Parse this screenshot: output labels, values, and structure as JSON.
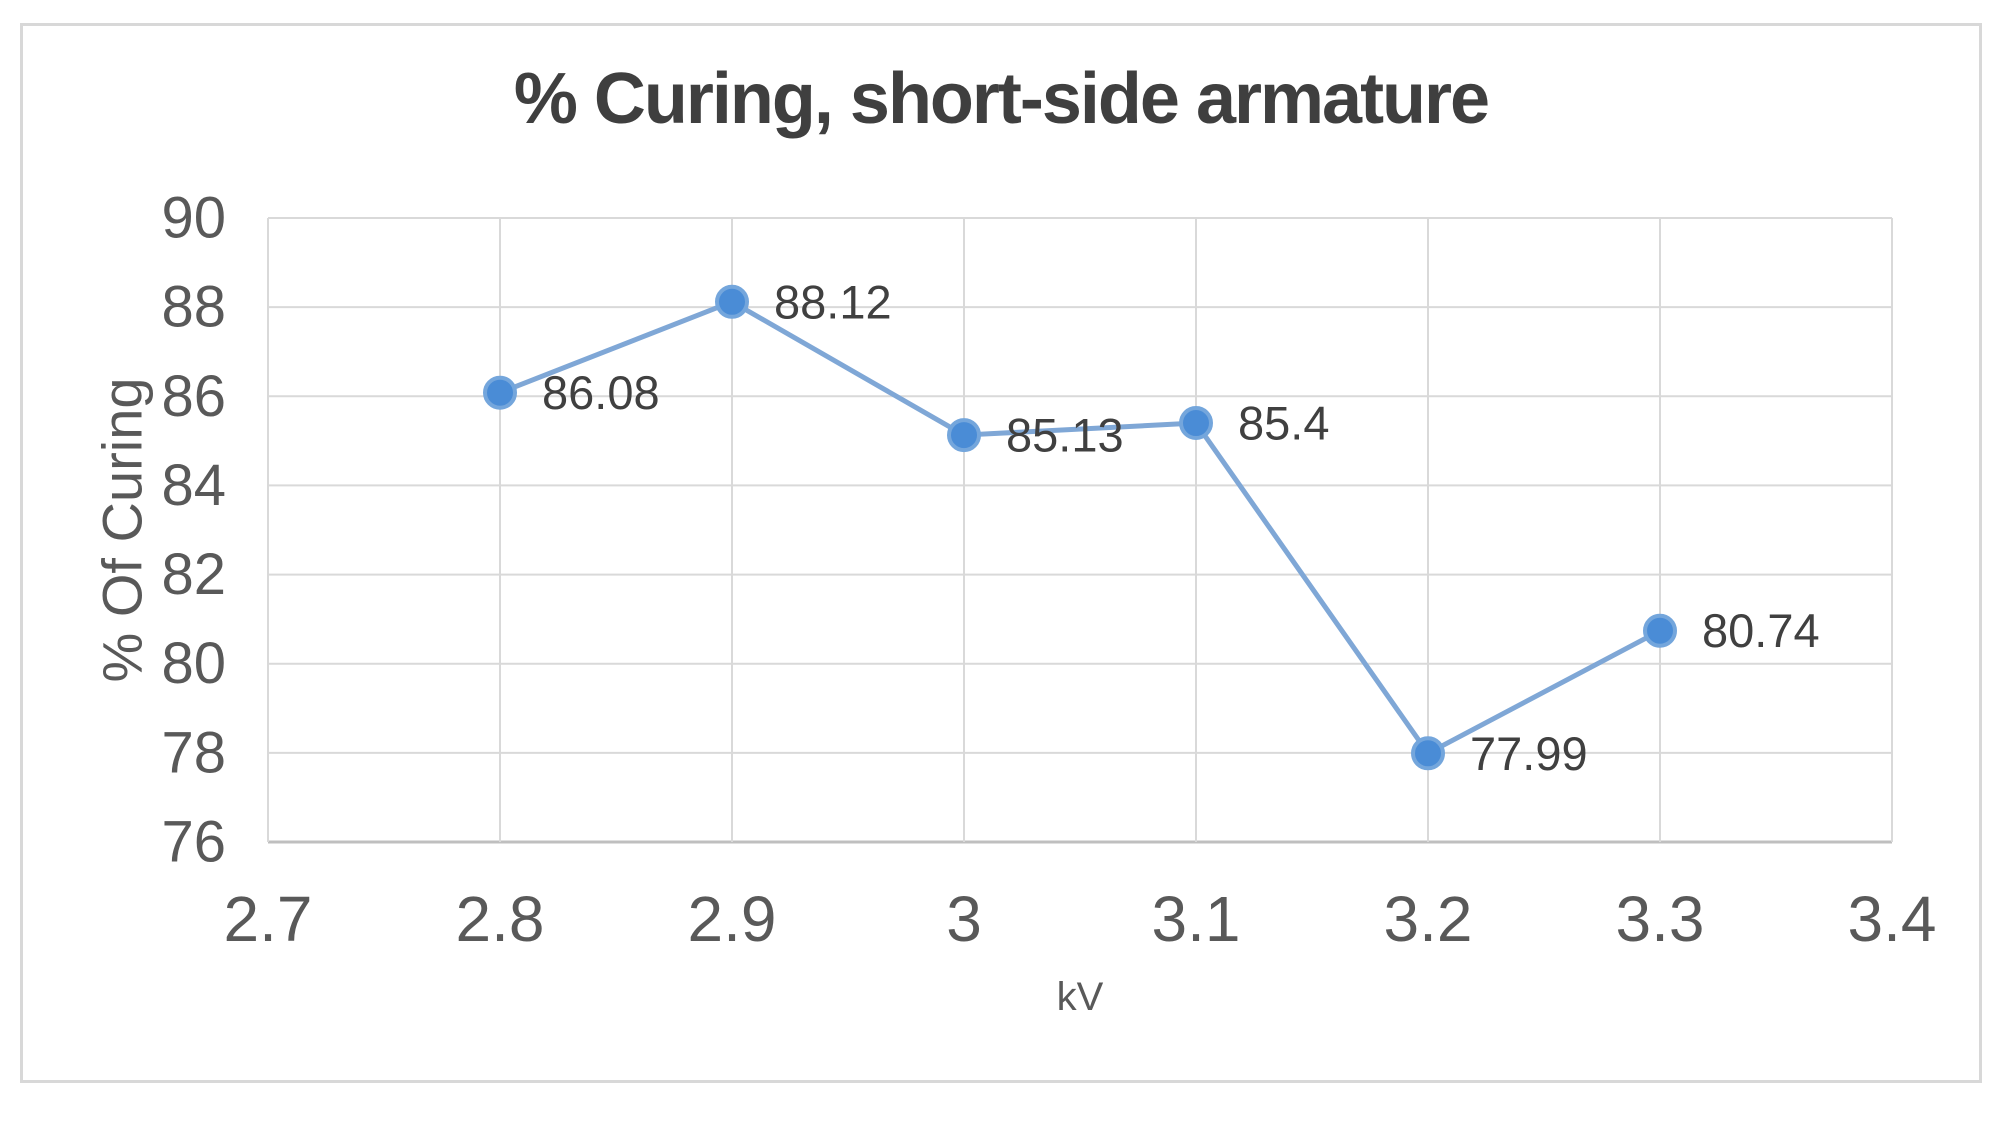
{
  "chart": {
    "frame_border_color": "#D8D8D8",
    "background": "#FFFFFF"
  },
  "chart_data": {
    "type": "line",
    "title": "% Curing, short-side armature",
    "xlabel": "kV",
    "ylabel": "% Of Curing",
    "series": [
      {
        "name": "% Curing short-side armature",
        "x": [
          2.8,
          2.9,
          3,
          3.1,
          3.2,
          3.3
        ],
        "y": [
          86.08,
          88.12,
          85.13,
          85.4,
          77.99,
          80.74
        ],
        "point_labels": [
          "86.08",
          "88.12",
          "85.13",
          "85.4",
          "77.99",
          "80.74"
        ]
      }
    ],
    "xlim": [
      2.7,
      3.4
    ],
    "ylim": [
      76,
      90
    ],
    "xticks": [
      2.7,
      2.8,
      2.9,
      3,
      3.1,
      3.2,
      3.3,
      3.4
    ],
    "yticks": [
      76,
      78,
      80,
      82,
      84,
      86,
      88,
      90
    ],
    "grid": true,
    "legend": "none",
    "colors": {
      "line": "#7FA7D6",
      "marker_fill": "#4A8CD6",
      "marker_edge": "#74A6DC",
      "gridline": "#D9D9D9",
      "axis_line": "#BFBFBF",
      "tick_label": "#595959",
      "data_label": "#404040",
      "title": "#3F3F3F",
      "axis_title": "#595959"
    }
  }
}
